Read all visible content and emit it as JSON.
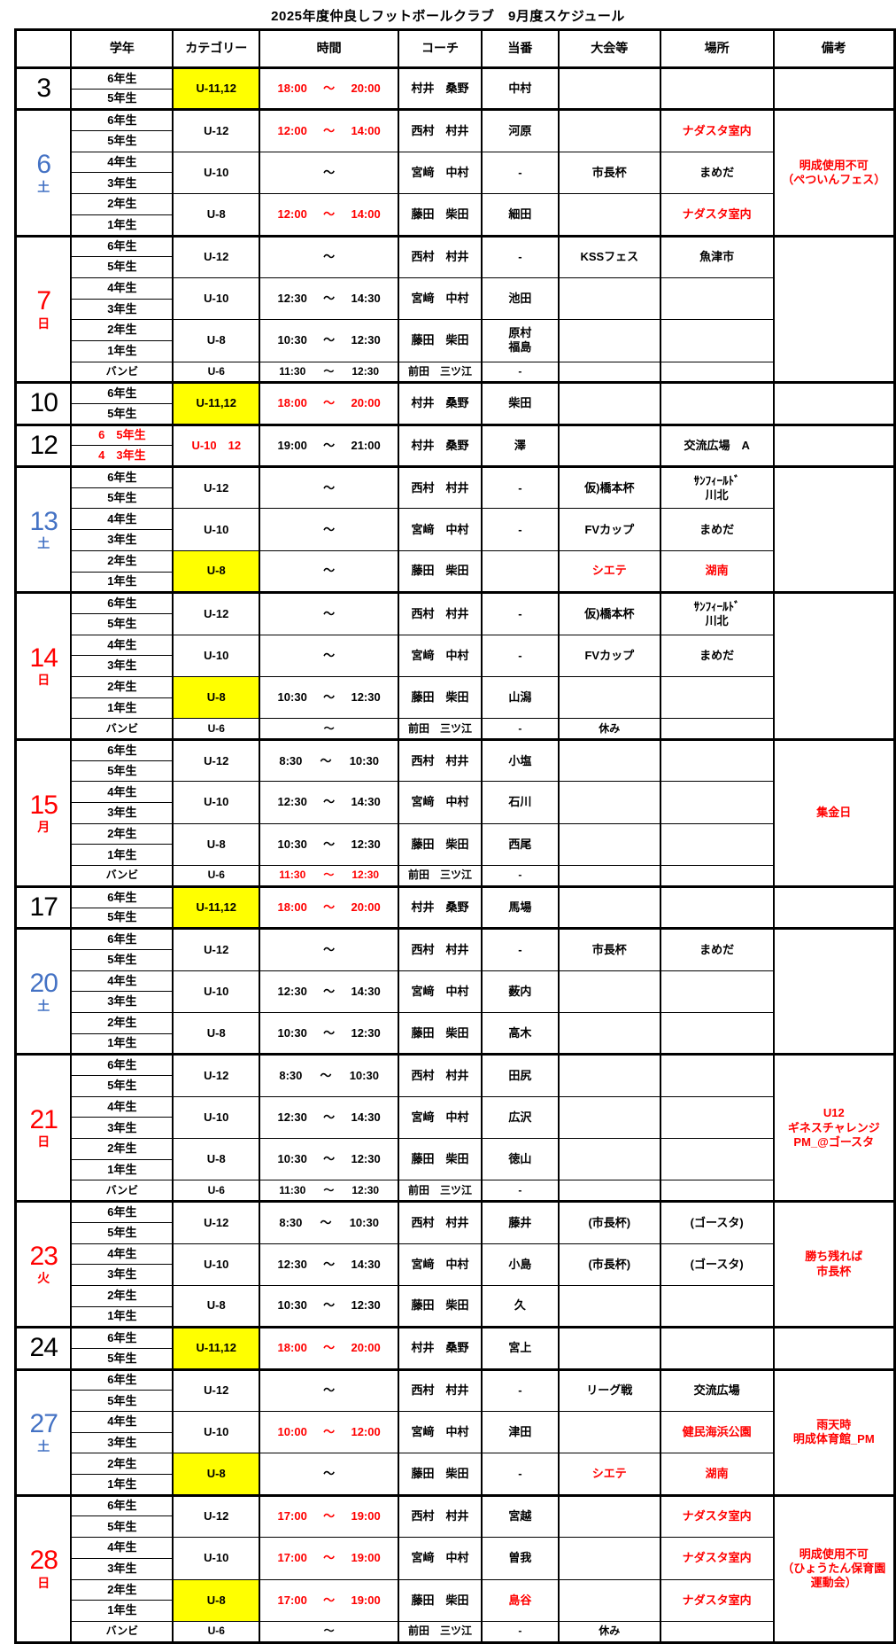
{
  "title": "2025年度仲良しフットボールクラブ　9月度スケジュール",
  "columns": [
    "",
    "学年",
    "カテゴリー",
    "時間",
    "コーチ",
    "当番",
    "大会等",
    "場所",
    "備考"
  ],
  "time_separator": "～",
  "colors": {
    "saturday_blue": "#4472C4",
    "sunday_red": "#FF0000",
    "highlight_yellow": "#FFFF00",
    "alert_red": "#FF0000",
    "text_black": "#000000"
  },
  "sections": [
    {
      "date": "3",
      "color": "#000000",
      "remark": "",
      "rows": [
        {
          "grades": [
            "6年生",
            "5年生"
          ],
          "category": "U-11,12",
          "category_bg": "#FFFF00",
          "time": {
            "start": "18:00",
            "end": "20:00"
          },
          "time_color": "#FF0000",
          "coach": "村井　桑野",
          "duty": "中村",
          "event": "",
          "place": ""
        }
      ]
    },
    {
      "date": "6",
      "day": "土",
      "color": "#4472C4",
      "remark": "明成使用不可\n（ぺついんフェス）",
      "rows": [
        {
          "grades": [
            "6年生",
            "5年生"
          ],
          "category": "U-12",
          "time": {
            "start": "12:00",
            "end": "14:00"
          },
          "time_color": "#FF0000",
          "coach": "西村　村井",
          "duty": "河原",
          "event": "",
          "place": "ナダスタ室内",
          "place_color": "#FF0000"
        },
        {
          "grades": [
            "4年生",
            "3年生"
          ],
          "category": "U-10",
          "time": {
            "start": "",
            "end": ""
          },
          "coach": "宮﨑　中村",
          "duty": "-",
          "event": "市長杯",
          "place": "まめだ"
        },
        {
          "grades": [
            "2年生",
            "1年生"
          ],
          "category": "U-8",
          "time": {
            "start": "12:00",
            "end": "14:00"
          },
          "time_color": "#FF0000",
          "coach": "藤田　柴田",
          "duty": "細田",
          "event": "",
          "place": "ナダスタ室内",
          "place_color": "#FF0000"
        }
      ]
    },
    {
      "date": "7",
      "day": "日",
      "color": "#FF0000",
      "remark": "",
      "rows": [
        {
          "grades": [
            "6年生",
            "5年生"
          ],
          "category": "U-12",
          "time": {
            "start": "",
            "end": ""
          },
          "coach": "西村　村井",
          "duty": "-",
          "event": "KSSフェス",
          "place": "魚津市"
        },
        {
          "grades": [
            "4年生",
            "3年生"
          ],
          "category": "U-10",
          "time": {
            "start": "12:30",
            "end": "14:30"
          },
          "coach": "宮﨑　中村",
          "duty": "池田",
          "event": "",
          "place": ""
        },
        {
          "grades": [
            "2年生",
            "1年生"
          ],
          "category": "U-8",
          "time": {
            "start": "10:30",
            "end": "12:30"
          },
          "coach": "藤田　柴田",
          "duty": "原村\n福島",
          "event": "",
          "place": ""
        },
        {
          "bambi": true,
          "grades": [
            "バンビ"
          ],
          "category": "U-6",
          "time": {
            "start": "11:30",
            "end": "12:30"
          },
          "coach": "前田　三ツ江",
          "duty": "-",
          "event": "",
          "place": ""
        }
      ]
    },
    {
      "date": "10",
      "color": "#000000",
      "remark": "",
      "rows": [
        {
          "grades": [
            "6年生",
            "5年生"
          ],
          "category": "U-11,12",
          "category_bg": "#FFFF00",
          "time": {
            "start": "18:00",
            "end": "20:00"
          },
          "time_color": "#FF0000",
          "coach": "村井　桑野",
          "duty": "柴田",
          "event": "",
          "place": ""
        }
      ]
    },
    {
      "date": "12",
      "color": "#000000",
      "grades_color": "#FF0000",
      "remark": "",
      "rows": [
        {
          "grades": [
            "6　5年生",
            "4　3年生"
          ],
          "category": "U-10　12",
          "category_color": "#FF0000",
          "time": {
            "start": "19:00",
            "end": "21:00"
          },
          "coach": "村井　桑野",
          "duty": "澤",
          "event": "",
          "place": "交流広場　A"
        }
      ]
    },
    {
      "date": "13",
      "day": "土",
      "color": "#4472C4",
      "remark": "",
      "rows": [
        {
          "grades": [
            "6年生",
            "5年生"
          ],
          "category": "U-12",
          "time": {
            "start": "",
            "end": ""
          },
          "coach": "西村　村井",
          "duty": "-",
          "event": "仮)橋本杯",
          "place": "ｻﾝﾌｨｰﾙﾄﾞ\n川北"
        },
        {
          "grades": [
            "4年生",
            "3年生"
          ],
          "category": "U-10",
          "time": {
            "start": "",
            "end": ""
          },
          "coach": "宮﨑　中村",
          "duty": "-",
          "event": "FVカップ",
          "place": "まめだ"
        },
        {
          "grades": [
            "2年生",
            "1年生"
          ],
          "category": "U-8",
          "category_bg": "#FFFF00",
          "time": {
            "start": "",
            "end": ""
          },
          "coach": "藤田　柴田",
          "duty": "",
          "event": "シエテ",
          "event_color": "#FF0000",
          "place": "湖南",
          "place_color": "#FF0000"
        }
      ]
    },
    {
      "date": "14",
      "day": "日",
      "color": "#FF0000",
      "remark": "",
      "rows": [
        {
          "grades": [
            "6年生",
            "5年生"
          ],
          "category": "U-12",
          "time": {
            "start": "",
            "end": ""
          },
          "coach": "西村　村井",
          "duty": "-",
          "event": "仮)橋本杯",
          "place": "ｻﾝﾌｨｰﾙﾄﾞ\n川北"
        },
        {
          "grades": [
            "4年生",
            "3年生"
          ],
          "category": "U-10",
          "time": {
            "start": "",
            "end": ""
          },
          "coach": "宮﨑　中村",
          "duty": "-",
          "event": "FVカップ",
          "place": "まめだ"
        },
        {
          "grades": [
            "2年生",
            "1年生"
          ],
          "category": "U-8",
          "category_bg": "#FFFF00",
          "time": {
            "start": "10:30",
            "end": "12:30"
          },
          "coach": "藤田　柴田",
          "duty": "山潟",
          "event": "",
          "place": ""
        },
        {
          "bambi": true,
          "grades": [
            "バンビ"
          ],
          "category": "U-6",
          "time": {
            "start": "",
            "end": ""
          },
          "coach": "前田　三ツ江",
          "duty": "-",
          "event": "休み",
          "place": ""
        }
      ]
    },
    {
      "date": "15",
      "day": "月",
      "color": "#FF0000",
      "remark": "集金日",
      "rows": [
        {
          "grades": [
            "6年生",
            "5年生"
          ],
          "category": "U-12",
          "time": {
            "start": "8:30",
            "end": "10:30"
          },
          "coach": "西村　村井",
          "duty": "小塩",
          "event": "",
          "place": ""
        },
        {
          "grades": [
            "4年生",
            "3年生"
          ],
          "category": "U-10",
          "time": {
            "start": "12:30",
            "end": "14:30"
          },
          "coach": "宮﨑　中村",
          "duty": "石川",
          "event": "",
          "place": ""
        },
        {
          "grades": [
            "2年生",
            "1年生"
          ],
          "category": "U-8",
          "time": {
            "start": "10:30",
            "end": "12:30"
          },
          "coach": "藤田　柴田",
          "duty": "西尾",
          "event": "",
          "place": ""
        },
        {
          "bambi": true,
          "grades": [
            "バンビ"
          ],
          "category": "U-6",
          "time": {
            "start": "11:30",
            "end": "12:30"
          },
          "time_color": "#FF0000",
          "coach": "前田　三ツ江",
          "duty": "-",
          "event": "",
          "place": ""
        }
      ]
    },
    {
      "date": "17",
      "color": "#000000",
      "remark": "",
      "rows": [
        {
          "grades": [
            "6年生",
            "5年生"
          ],
          "category": "U-11,12",
          "category_bg": "#FFFF00",
          "time": {
            "start": "18:00",
            "end": "20:00"
          },
          "time_color": "#FF0000",
          "coach": "村井　桑野",
          "duty": "馬場",
          "event": "",
          "place": ""
        }
      ]
    },
    {
      "date": "20",
      "day": "土",
      "color": "#4472C4",
      "remark": "",
      "rows": [
        {
          "grades": [
            "6年生",
            "5年生"
          ],
          "category": "U-12",
          "time": {
            "start": "",
            "end": ""
          },
          "coach": "西村　村井",
          "duty": "-",
          "event": "市長杯",
          "place": "まめだ"
        },
        {
          "grades": [
            "4年生",
            "3年生"
          ],
          "category": "U-10",
          "time": {
            "start": "12:30",
            "end": "14:30"
          },
          "coach": "宮﨑　中村",
          "duty": "薮内",
          "event": "",
          "place": ""
        },
        {
          "grades": [
            "2年生",
            "1年生"
          ],
          "category": "U-8",
          "time": {
            "start": "10:30",
            "end": "12:30"
          },
          "coach": "藤田　柴田",
          "duty": "高木",
          "event": "",
          "place": ""
        }
      ]
    },
    {
      "date": "21",
      "day": "日",
      "color": "#FF0000",
      "remark": "U12\nギネスチャレンジ\nPM_@ゴースタ",
      "rows": [
        {
          "grades": [
            "6年生",
            "5年生"
          ],
          "category": "U-12",
          "time": {
            "start": "8:30",
            "end": "10:30"
          },
          "coach": "西村　村井",
          "duty": "田尻",
          "event": "",
          "place": ""
        },
        {
          "grades": [
            "4年生",
            "3年生"
          ],
          "category": "U-10",
          "time": {
            "start": "12:30",
            "end": "14:30"
          },
          "coach": "宮﨑　中村",
          "duty": "広沢",
          "event": "",
          "place": ""
        },
        {
          "grades": [
            "2年生",
            "1年生"
          ],
          "category": "U-8",
          "time": {
            "start": "10:30",
            "end": "12:30"
          },
          "coach": "藤田　柴田",
          "duty": "徳山",
          "event": "",
          "place": ""
        },
        {
          "bambi": true,
          "grades": [
            "バンビ"
          ],
          "category": "U-6",
          "time": {
            "start": "11:30",
            "end": "12:30"
          },
          "coach": "前田　三ツ江",
          "duty": "-",
          "event": "",
          "place": ""
        }
      ]
    },
    {
      "date": "23",
      "day": "火",
      "color": "#FF0000",
      "remark": "勝ち残れば\n市長杯",
      "rows": [
        {
          "grades": [
            "6年生",
            "5年生"
          ],
          "category": "U-12",
          "time": {
            "start": "8:30",
            "end": "10:30"
          },
          "coach": "西村　村井",
          "duty": "藤井",
          "event": "(市長杯)",
          "place": "(ゴースタ)"
        },
        {
          "grades": [
            "4年生",
            "3年生"
          ],
          "category": "U-10",
          "time": {
            "start": "12:30",
            "end": "14:30"
          },
          "coach": "宮﨑　中村",
          "duty": "小島",
          "event": "(市長杯)",
          "place": "(ゴースタ)"
        },
        {
          "grades": [
            "2年生",
            "1年生"
          ],
          "category": "U-8",
          "time": {
            "start": "10:30",
            "end": "12:30"
          },
          "coach": "藤田　柴田",
          "duty": "久",
          "event": "",
          "place": ""
        }
      ]
    },
    {
      "date": "24",
      "color": "#000000",
      "remark": "",
      "rows": [
        {
          "grades": [
            "6年生",
            "5年生"
          ],
          "category": "U-11,12",
          "category_bg": "#FFFF00",
          "time": {
            "start": "18:00",
            "end": "20:00"
          },
          "time_color": "#FF0000",
          "coach": "村井　桑野",
          "duty": "宮上",
          "event": "",
          "place": ""
        }
      ]
    },
    {
      "date": "27",
      "day": "土",
      "color": "#4472C4",
      "remark": "雨天時\n明成体育館_PM",
      "rows": [
        {
          "grades": [
            "6年生",
            "5年生"
          ],
          "category": "U-12",
          "time": {
            "start": "",
            "end": ""
          },
          "coach": "西村　村井",
          "duty": "-",
          "event": "リーグ戦",
          "place": "交流広場"
        },
        {
          "grades": [
            "4年生",
            "3年生"
          ],
          "category": "U-10",
          "time": {
            "start": "10:00",
            "end": "12:00"
          },
          "time_color": "#FF0000",
          "coach": "宮﨑　中村",
          "duty": "津田",
          "event": "",
          "place": "健民海浜公園",
          "place_color": "#FF0000"
        },
        {
          "grades": [
            "2年生",
            "1年生"
          ],
          "category": "U-8",
          "category_bg": "#FFFF00",
          "time": {
            "start": "",
            "end": ""
          },
          "coach": "藤田　柴田",
          "duty": "-",
          "event": "シエテ",
          "event_color": "#FF0000",
          "place": "湖南",
          "place_color": "#FF0000"
        }
      ]
    },
    {
      "date": "28",
      "day": "日",
      "color": "#FF0000",
      "remark": "明成使用不可\n（ひょうたん保育園\n運動会）",
      "rows": [
        {
          "grades": [
            "6年生",
            "5年生"
          ],
          "category": "U-12",
          "time": {
            "start": "17:00",
            "end": "19:00"
          },
          "time_color": "#FF0000",
          "coach": "西村　村井",
          "duty": "宮越",
          "event": "",
          "place": "ナダスタ室内",
          "place_color": "#FF0000"
        },
        {
          "grades": [
            "4年生",
            "3年生"
          ],
          "category": "U-10",
          "time": {
            "start": "17:00",
            "end": "19:00"
          },
          "time_color": "#FF0000",
          "coach": "宮﨑　中村",
          "duty": "曽我",
          "event": "",
          "place": "ナダスタ室内",
          "place_color": "#FF0000"
        },
        {
          "grades": [
            "2年生",
            "1年生"
          ],
          "category": "U-8",
          "category_bg": "#FFFF00",
          "time": {
            "start": "17:00",
            "end": "19:00"
          },
          "time_color": "#FF0000",
          "coach": "藤田　柴田",
          "duty": "島谷",
          "duty_color": "#FF0000",
          "event": "",
          "place": "ナダスタ室内",
          "place_color": "#FF0000"
        },
        {
          "bambi": true,
          "grades": [
            "バンビ"
          ],
          "category": "U-6",
          "time": {
            "start": "",
            "end": ""
          },
          "coach": "前田　三ツ江",
          "duty": "-",
          "event": "休み",
          "place": ""
        }
      ]
    }
  ]
}
